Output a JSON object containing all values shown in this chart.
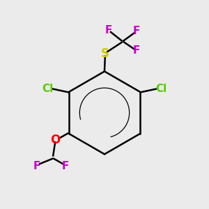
{
  "bg_color": "#ebebeb",
  "bond_color": "#000000",
  "bond_width": 1.8,
  "colors": {
    "Cl": "#55cc00",
    "S": "#cccc00",
    "F": "#cc00cc",
    "O": "#ff0000",
    "C": "#000000"
  },
  "font_size": 11,
  "font_size_large": 12
}
